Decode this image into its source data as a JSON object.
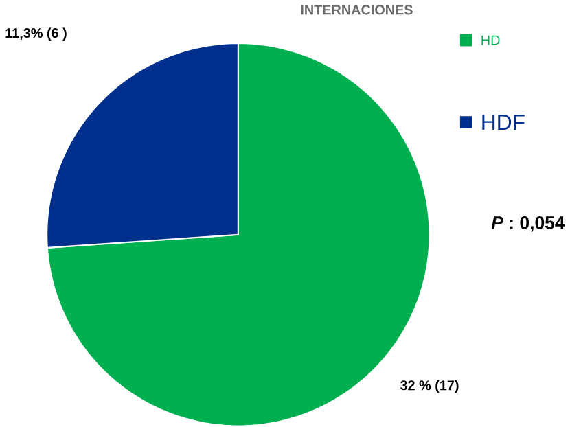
{
  "chart_data": {
    "type": "pie",
    "title": "INTERNACIONES",
    "categories": [
      "HD",
      "HDF"
    ],
    "values": [
      17,
      6
    ],
    "colors": [
      "#00b050",
      "#002f8e"
    ],
    "value_labels": [
      "32 % (17)",
      "11,3% (6 )"
    ],
    "legend": "right",
    "annotations": [
      "*P* : 0,054"
    ]
  }
}
